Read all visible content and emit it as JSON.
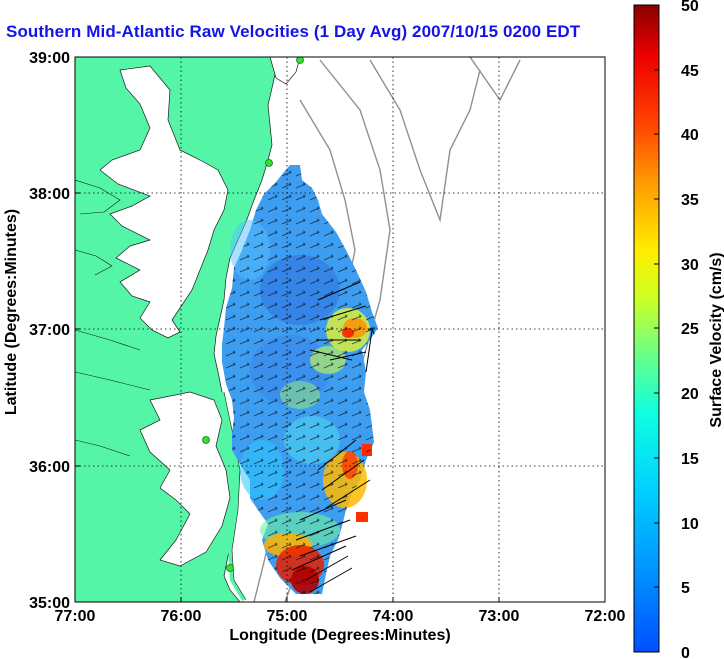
{
  "title": "Southern Mid-Atlantic Raw Velocities (1 Day Avg) 2007/10/15 0200 EDT",
  "map": {
    "xlabel": "Longitude (Degrees:Minutes)",
    "ylabel": "Latitude (Degrees:Minutes)",
    "x_ticks": [
      "77:00",
      "76:00",
      "75:00",
      "74:00",
      "73:00",
      "72:00"
    ],
    "y_ticks": [
      "39:00",
      "38:00",
      "37:00",
      "36:00",
      "35:00"
    ],
    "grid": "dotted",
    "land_color": "#55f5a8",
    "station_color": "#33dd33"
  },
  "colorbar": {
    "label": "Surface Velocity (cm/s)",
    "ticks": [
      "50",
      "45",
      "40",
      "35",
      "30",
      "25",
      "20",
      "15",
      "10",
      "5",
      "0"
    ],
    "range": [
      0,
      50
    ],
    "colormap": "jet"
  }
}
